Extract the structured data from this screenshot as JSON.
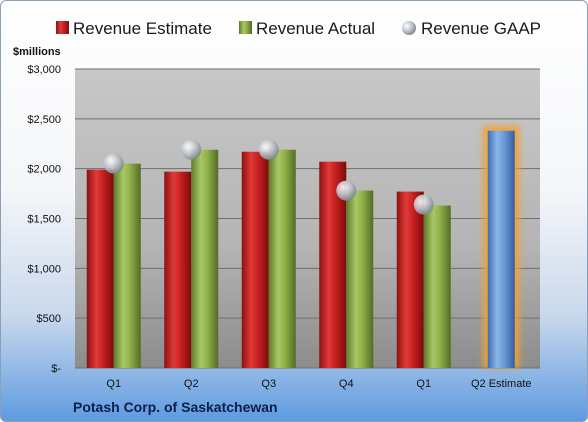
{
  "chart_data": {
    "type": "bar",
    "categories": [
      "Q1",
      "Q2",
      "Q3",
      "Q4",
      "Q1",
      "Q2 Estimate"
    ],
    "series": [
      {
        "name": "Revenue Estimate",
        "values": [
          1990,
          1970,
          2170,
          2070,
          1770,
          2380
        ]
      },
      {
        "name": "Revenue Actual",
        "values": [
          2050,
          2190,
          2190,
          1780,
          1630,
          null
        ]
      },
      {
        "name": "Revenue GAAP",
        "values": [
          2050,
          2190,
          2190,
          1780,
          1640,
          null
        ]
      }
    ],
    "ylabel": "$millions",
    "ylim": [
      0,
      3000
    ],
    "yticks": [
      0,
      500,
      1000,
      1500,
      2000,
      2500,
      3000
    ],
    "ytick_labels": [
      "$-",
      "$500",
      "$1,000",
      "$1,500",
      "$2,000",
      "$2,500",
      "$3,000"
    ],
    "legend_position": "top",
    "grid": true,
    "colors": {
      "estimate": "#cc2222",
      "actual": "#8fb04a",
      "gaap": "#b8bcc4",
      "forecast": "#6a9bd8",
      "forecast_glow": "#f5a030"
    },
    "source_label": "Potash Corp. of Saskatchewan"
  }
}
